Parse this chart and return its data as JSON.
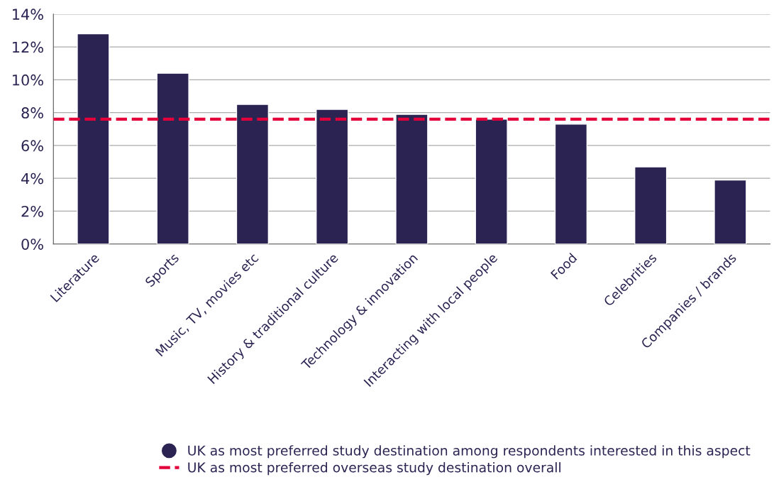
{
  "chart_data": {
    "type": "bar",
    "categories": [
      "Literature",
      "Sports",
      "Music, TV, movies etc",
      "History & traditional culture",
      "Technology & innovation",
      "Interacting with local people",
      "Food",
      "Celebrities",
      "Companies / brands"
    ],
    "series": [
      {
        "name": "UK as most preferred study destination among respondents interested in this aspect",
        "color": "#2b2452",
        "values": [
          12.8,
          10.4,
          8.5,
          8.2,
          7.9,
          7.6,
          7.3,
          4.7,
          3.9
        ]
      }
    ],
    "ylim": [
      0,
      14
    ],
    "yticks": [
      {
        "value": 0,
        "label": "0%"
      },
      {
        "value": 2,
        "label": "2%"
      },
      {
        "value": 4,
        "label": "4%"
      },
      {
        "value": 6,
        "label": "6%"
      },
      {
        "value": 8,
        "label": "8%"
      },
      {
        "value": 10,
        "label": "10%"
      },
      {
        "value": 12,
        "label": "12%"
      },
      {
        "value": 14,
        "label": "14%"
      }
    ],
    "ref_lines": [
      {
        "axis": "y",
        "value": 7.6,
        "label": "UK as most preferred overseas study destination overall",
        "color": "#e4003b",
        "line_style": "dashed"
      }
    ],
    "grid": "y",
    "legend": "bottom"
  }
}
